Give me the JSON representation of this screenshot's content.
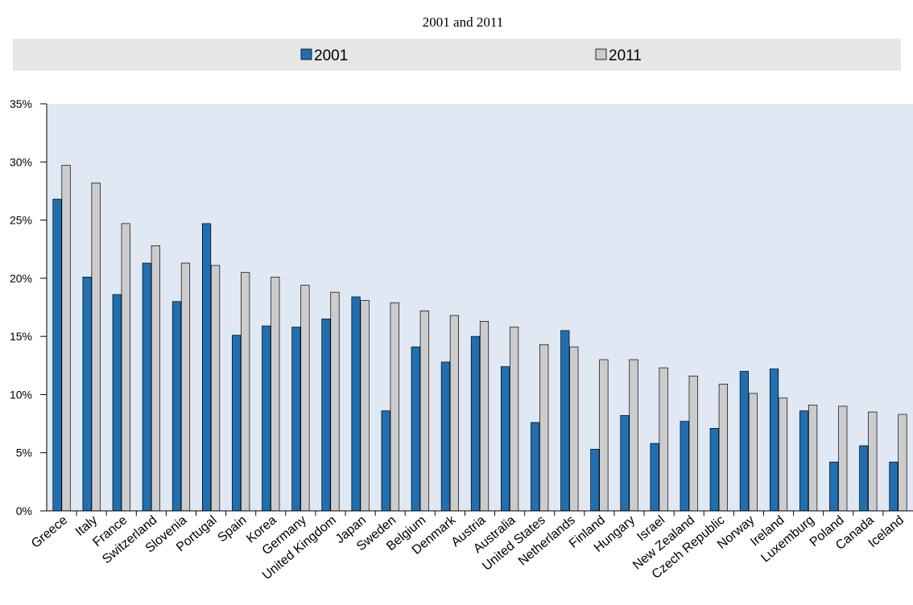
{
  "chart_data": {
    "type": "bar",
    "title": "2001 and 2011",
    "legend_position": "top",
    "grid": false,
    "ylim": [
      0,
      35
    ],
    "ytick_labels": [
      "0%",
      "5%",
      "10%",
      "15%",
      "20%",
      "25%",
      "30%",
      "35%"
    ],
    "categories": [
      "Greece",
      "Italy",
      "France",
      "Switzerland",
      "Slovenia",
      "Portugal",
      "Spain",
      "Korea",
      "Germany",
      "United Kingdom",
      "Japan",
      "Sweden",
      "Belgium",
      "Denmark",
      "Austria",
      "Australia",
      "United States",
      "Netherlands",
      "Finland",
      "Hungary",
      "Israel",
      "New Zealand",
      "Czech Republic",
      "Norway",
      "Ireland",
      "Luxemburg",
      "Poland",
      "Canada",
      "Iceland"
    ],
    "series": [
      {
        "name": "2001",
        "color": "#1f6fb3",
        "values": [
          26.8,
          20.1,
          18.6,
          21.3,
          18.0,
          24.7,
          15.1,
          15.9,
          15.8,
          16.5,
          18.4,
          8.6,
          14.1,
          12.8,
          15.0,
          12.4,
          7.6,
          15.5,
          5.3,
          8.2,
          5.8,
          7.7,
          7.1,
          12.0,
          12.2,
          8.6,
          4.2,
          5.6,
          4.2
        ]
      },
      {
        "name": "2011",
        "color": "#cccccc",
        "values": [
          29.7,
          28.2,
          24.7,
          22.8,
          21.3,
          21.1,
          20.5,
          20.1,
          19.4,
          18.8,
          18.1,
          17.9,
          17.2,
          16.8,
          16.3,
          15.8,
          14.3,
          14.1,
          13.0,
          13.0,
          12.3,
          11.6,
          10.9,
          10.1,
          9.7,
          9.1,
          9.0,
          8.5,
          8.3
        ]
      }
    ]
  }
}
